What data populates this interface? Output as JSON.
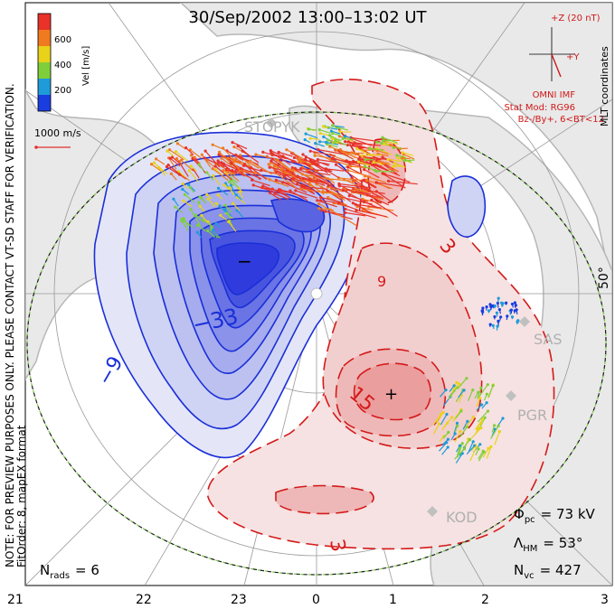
{
  "title": "30/Sep/2002 13:00–13:02 UT",
  "colorbar": {
    "label": "Vel [m/s]",
    "ticks": [
      "600",
      "400",
      "200"
    ],
    "colors": [
      "#e8322a",
      "#f07a1f",
      "#e8d21a",
      "#7fcf3a",
      "#1e9bd8",
      "#1a3de0"
    ]
  },
  "scale": {
    "label": "1000 m/s",
    "color": "#e03030"
  },
  "imf": {
    "z_label": "+Z (20 nT)",
    "y_label": "+Y",
    "model_lines": [
      "OMNI IMF",
      "Stat Mod: RG96",
      "Bz-/By+, 6<BT<12"
    ],
    "color": "#d01818"
  },
  "left_side_text": {
    "line1": "NOTE: FOR PREVIEW PURPOSES ONLY. PLEASE CONTACT VT-SD STAFF FOR VERIFICATION.",
    "line2": "FitOrder: 8, mapEX format"
  },
  "mlt_label": "MLT coordinates",
  "lat_label": "50°",
  "stations": [
    "STO",
    "PYK",
    "SAS",
    "PGR",
    "KOD"
  ],
  "contour_labels": {
    "neg_min": "−",
    "pos_max": "+",
    "neg_33": "−33",
    "neg_9": "−9",
    "pos_15": "15",
    "pos_3a": "3",
    "pos_3b": "3",
    "pos_9": "9"
  },
  "stats": {
    "phi_pc_sym": "Φ",
    "phi_pc_sub": "pc",
    "phi_pc_val": "= 73 kV",
    "lambda_sym": "Λ",
    "lambda_sub": "HM",
    "lambda_val": "= 53°",
    "nvc_sym": "N",
    "nvc_sub": "vc",
    "nvc_val": "= 427",
    "nrads_sym": "N",
    "nrads_sub": "rads",
    "nrads_val": "= 6"
  },
  "mlt_ticks": [
    "21",
    "22",
    "23",
    "0",
    "1",
    "2",
    "3"
  ],
  "colors": {
    "negative": "#1a2fd8",
    "positive": "#d41a1a",
    "land": "#b8b8b8",
    "boundary": "#7ac943"
  }
}
